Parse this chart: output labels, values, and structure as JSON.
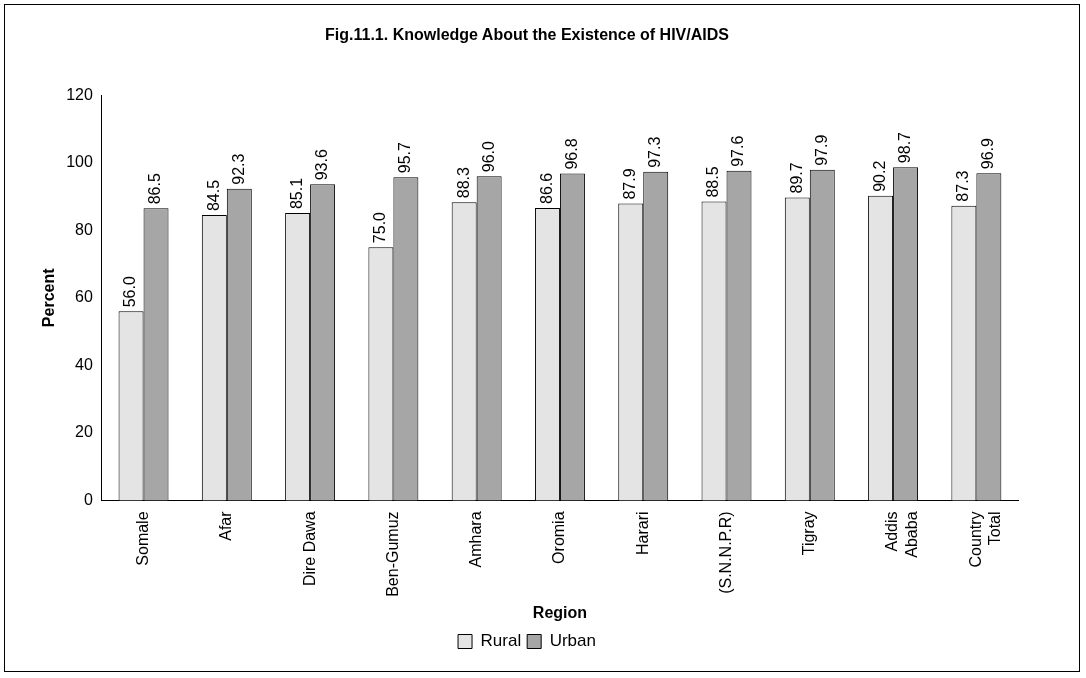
{
  "chart_data": {
    "type": "bar",
    "title": "Fig.11.1. Knowledge About the Existence of HIV/AIDS",
    "xlabel": "Region",
    "ylabel": "Percent",
    "categories": [
      "Somale",
      "Afar",
      "Dire Dawa",
      "Ben-Gumuz",
      "Amhara",
      "Oromia",
      "Harari",
      "(S.N.N.P.R)",
      "Tigray",
      "Addis Ababa",
      "Country Total"
    ],
    "series": [
      {
        "name": "Rural",
        "color": "#e4e4e4",
        "values": [
          56.0,
          84.5,
          85.1,
          75.0,
          88.3,
          86.6,
          87.9,
          88.5,
          89.7,
          90.2,
          87.3
        ],
        "value_labels": [
          "56.0",
          "84.5",
          "85.1",
          "75.0",
          "88.3",
          "86.6",
          "87.9",
          "88.5",
          "89.7",
          "90.2",
          "87.3"
        ]
      },
      {
        "name": "Urban",
        "color": "#a6a6a6",
        "values": [
          86.5,
          92.3,
          93.6,
          95.7,
          96.0,
          96.8,
          97.3,
          97.6,
          97.9,
          98.7,
          96.9
        ],
        "value_labels": [
          "86.5",
          "92.3",
          "93.6",
          "95.7",
          "96.0",
          "96.8",
          "97.3",
          "97.6",
          "97.9",
          "98.7",
          "96.9"
        ]
      }
    ],
    "ylim": [
      0,
      120
    ],
    "yticks": [
      0,
      20,
      40,
      60,
      80,
      100,
      120
    ],
    "grid": false,
    "legend": "bottom"
  }
}
